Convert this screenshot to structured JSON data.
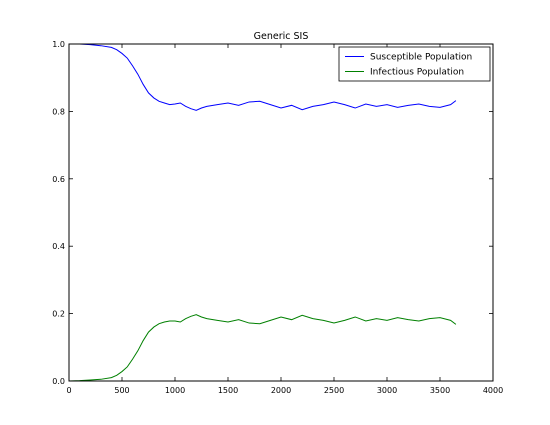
{
  "chart_data": {
    "type": "line",
    "title": "Generic SIS",
    "xlabel": "",
    "ylabel": "",
    "xlim": [
      0,
      4000
    ],
    "ylim": [
      0,
      1
    ],
    "xticks": [
      0,
      500,
      1000,
      1500,
      2000,
      2500,
      3000,
      3500,
      4000
    ],
    "yticks": [
      0.0,
      0.2,
      0.4,
      0.6,
      0.8,
      1.0
    ],
    "xtick_labels": [
      "0",
      "500",
      "1000",
      "1500",
      "2000",
      "2500",
      "3000",
      "3500",
      "4000"
    ],
    "ytick_labels": [
      "0.0",
      "0.2",
      "0.4",
      "0.6",
      "0.8",
      "1.0"
    ],
    "grid": false,
    "legend_position": "top-right",
    "series": [
      {
        "name": "Susceptible Population",
        "color": "#0000ff",
        "x": [
          0,
          100,
          200,
          300,
          400,
          450,
          500,
          550,
          600,
          650,
          700,
          750,
          800,
          850,
          900,
          950,
          1000,
          1050,
          1100,
          1150,
          1200,
          1250,
          1300,
          1400,
          1500,
          1600,
          1700,
          1800,
          1900,
          2000,
          2100,
          2200,
          2300,
          2400,
          2500,
          2600,
          2700,
          2800,
          2900,
          3000,
          3100,
          3200,
          3300,
          3400,
          3500,
          3600,
          3650
        ],
        "y": [
          1.0,
          1.0,
          0.998,
          0.995,
          0.99,
          0.983,
          0.972,
          0.958,
          0.935,
          0.91,
          0.88,
          0.855,
          0.84,
          0.83,
          0.825,
          0.82,
          0.822,
          0.825,
          0.815,
          0.808,
          0.803,
          0.81,
          0.815,
          0.82,
          0.825,
          0.818,
          0.828,
          0.83,
          0.82,
          0.81,
          0.818,
          0.805,
          0.815,
          0.82,
          0.828,
          0.82,
          0.81,
          0.822,
          0.815,
          0.82,
          0.812,
          0.818,
          0.822,
          0.815,
          0.812,
          0.82,
          0.832
        ]
      },
      {
        "name": "Infectious Population",
        "color": "#008000",
        "x": [
          0,
          100,
          200,
          300,
          400,
          450,
          500,
          550,
          600,
          650,
          700,
          750,
          800,
          850,
          900,
          950,
          1000,
          1050,
          1100,
          1150,
          1200,
          1250,
          1300,
          1400,
          1500,
          1600,
          1700,
          1800,
          1900,
          2000,
          2100,
          2200,
          2300,
          2400,
          2500,
          2600,
          2700,
          2800,
          2900,
          3000,
          3100,
          3200,
          3300,
          3400,
          3500,
          3600,
          3650
        ],
        "y": [
          0.0,
          0.001,
          0.003,
          0.005,
          0.01,
          0.017,
          0.028,
          0.042,
          0.065,
          0.09,
          0.12,
          0.145,
          0.16,
          0.17,
          0.175,
          0.178,
          0.178,
          0.175,
          0.185,
          0.192,
          0.197,
          0.19,
          0.185,
          0.18,
          0.175,
          0.182,
          0.172,
          0.17,
          0.18,
          0.19,
          0.182,
          0.195,
          0.185,
          0.18,
          0.172,
          0.18,
          0.19,
          0.178,
          0.185,
          0.18,
          0.188,
          0.182,
          0.178,
          0.185,
          0.188,
          0.18,
          0.168
        ]
      }
    ]
  }
}
